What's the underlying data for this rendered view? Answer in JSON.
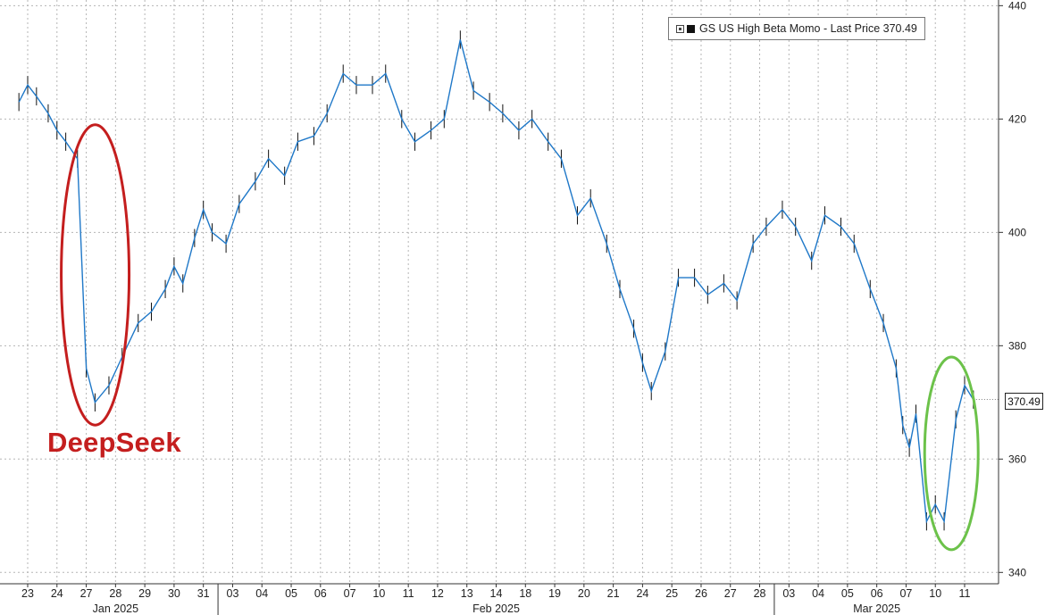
{
  "chart_data": {
    "type": "line",
    "title": "",
    "series": [
      {
        "name": "GS US High Beta Momo - Last Price",
        "last_value": "370.49",
        "color": "#1f78c8",
        "points": [
          [
            "23",
            423
          ],
          [
            "23",
            426
          ],
          [
            "23",
            424
          ],
          [
            "24",
            421
          ],
          [
            "24",
            418
          ],
          [
            "24",
            416
          ],
          [
            "27",
            413
          ],
          [
            "27",
            376
          ],
          [
            "27",
            370
          ],
          [
            "28",
            373
          ],
          [
            "28",
            378
          ],
          [
            "29",
            384
          ],
          [
            "29",
            386
          ],
          [
            "30",
            390
          ],
          [
            "30",
            394
          ],
          [
            "30",
            391
          ],
          [
            "31",
            399
          ],
          [
            "31",
            404
          ],
          [
            "31",
            400
          ],
          [
            "03",
            398
          ],
          [
            "03",
            405
          ],
          [
            "04",
            409
          ],
          [
            "04",
            413
          ],
          [
            "05",
            410
          ],
          [
            "05",
            416
          ],
          [
            "06",
            417
          ],
          [
            "06",
            421
          ],
          [
            "07",
            428
          ],
          [
            "07",
            426
          ],
          [
            "10",
            426
          ],
          [
            "10",
            428
          ],
          [
            "11",
            420
          ],
          [
            "11",
            416
          ],
          [
            "12",
            418
          ],
          [
            "12",
            420
          ],
          [
            "13",
            434
          ],
          [
            "13",
            425
          ],
          [
            "14",
            423
          ],
          [
            "14",
            421
          ],
          [
            "18",
            418
          ],
          [
            "18",
            420
          ],
          [
            "19",
            416
          ],
          [
            "19",
            413
          ],
          [
            "20",
            403
          ],
          [
            "20",
            406
          ],
          [
            "21",
            398
          ],
          [
            "21",
            390
          ],
          [
            "24",
            383
          ],
          [
            "24",
            377
          ],
          [
            "24",
            372
          ],
          [
            "25",
            379
          ],
          [
            "25",
            392
          ],
          [
            "26",
            392
          ],
          [
            "26",
            389
          ],
          [
            "27",
            391
          ],
          [
            "27",
            388
          ],
          [
            "28",
            398
          ],
          [
            "28",
            401
          ],
          [
            "03",
            404
          ],
          [
            "03",
            401
          ],
          [
            "04",
            395
          ],
          [
            "04",
            403
          ],
          [
            "05",
            401
          ],
          [
            "05",
            398
          ],
          [
            "06",
            390
          ],
          [
            "06",
            384
          ],
          [
            "07",
            376
          ],
          [
            "07",
            366
          ],
          [
            "07",
            362
          ],
          [
            "07",
            368
          ],
          [
            "10",
            349
          ],
          [
            "10",
            352
          ],
          [
            "10",
            349
          ],
          [
            "11",
            367
          ],
          [
            "11",
            373
          ],
          [
            "11",
            370.49
          ]
        ]
      }
    ],
    "x_ticks": [
      "23",
      "24",
      "27",
      "28",
      "29",
      "30",
      "31",
      "03",
      "04",
      "05",
      "06",
      "07",
      "10",
      "11",
      "12",
      "13",
      "14",
      "18",
      "19",
      "20",
      "21",
      "24",
      "25",
      "26",
      "27",
      "28",
      "03",
      "04",
      "05",
      "06",
      "07",
      "10",
      "11"
    ],
    "months": [
      "Jan 2025",
      "Feb 2025",
      "Mar 2025"
    ],
    "y_ticks": [
      340,
      360,
      380,
      400,
      420,
      440
    ],
    "ylim": [
      338,
      441
    ],
    "grid": true,
    "legend_position": "top-right",
    "annotations": [
      {
        "text": "DeepSeek",
        "color": "#c41e1e"
      }
    ]
  },
  "legend": {
    "label": "GS US High Beta Momo - Last Price 370.49"
  },
  "last_price_tag": "370.49"
}
